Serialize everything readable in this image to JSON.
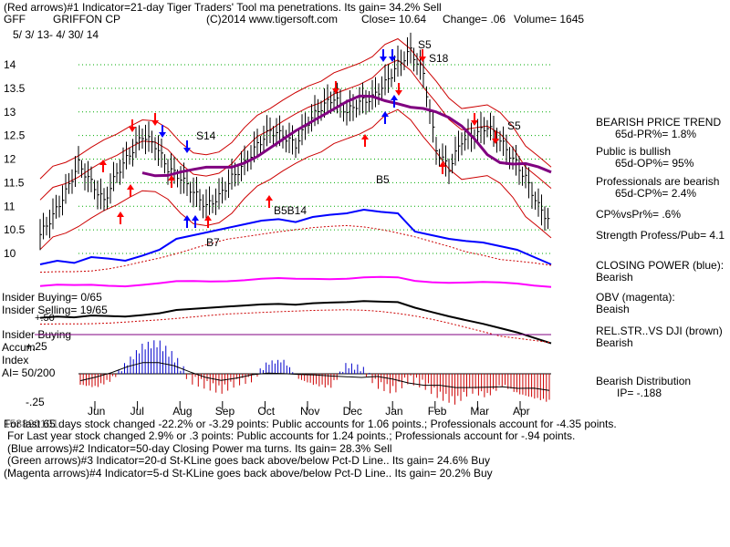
{
  "header": {
    "line1": "(Red arrows)#1 Indicator=21-day Tiger Traders' Tool ma penetrations.  Its gain= 34.2% Sell",
    "symbol": "GFF",
    "company": "GRIFFON CP",
    "copyright": "(C)2014 www.tigersoft.com",
    "close": "Close=  10.64",
    "change": "Change= .06",
    "volume": "Volume= 1645",
    "date_range": "5/ 3/ 13-  4/ 30/ 14"
  },
  "side_panel": [
    {
      "text": "BEARISH PRICE TREND"
    },
    {
      "text": "65d-PR%= 1.8%"
    },
    {
      "text": "Public is bullish"
    },
    {
      "text": "65d-OP%= 95%"
    },
    {
      "text": "Professionals are bearish"
    },
    {
      "text": "65d-CP%= 2.4%"
    },
    {
      "text": "CP%vsPr%=  .6%"
    },
    {
      "text": "Strength Profess/Pub= 4.1"
    },
    {
      "text": "CLOSING POWER (blue):"
    },
    {
      "text": "Bearish"
    },
    {
      "text": "OBV (magenta):"
    },
    {
      "text": "Beaish"
    },
    {
      "text": "REL.STR..VS DJI (brown)"
    },
    {
      "text": "Bearish"
    },
    {
      "text": "Bearish Distribution"
    },
    {
      "text": "IP= -.188"
    }
  ],
  "left_labels": {
    "insider_buying_ratio": "Insider Buying= 0/65",
    "insider_selling_ratio": "Insider Selling= 19/65",
    "plus50": "+.50",
    "insider_buying": "Insider Buying",
    "accum": "Accum",
    "plus25": "+.25",
    "index": "Index",
    "ai": "AI= 50/200",
    "minus25": "-.25"
  },
  "footer": [
    "For last 65 days stock changed -22.2% or -3.29 points:  Public accounts for  1.06 points.;  Professionals account for -4.35 points.",
    "For Last year stock changed  2.9% or  .3 points:  Public accounts for  1.24 points.;  Professionals account for -.94 points.",
    "(Blue arrows)#2 Indicator=50-day Closing Power ma turns. Its gain= 28.3% Sell",
    "(Green arrows)#3 Indicator=20-d St-KLine goes back above/below Pct-D Line..  Its gain= 24.6% Buy",
    "(Magenta arrows)#4 Indicator=5-d St-KLine goes back above/below Pct-D Line..  Its gain= 20.2% Buy"
  ],
  "footer_overlap": "153890101",
  "annotations": [
    {
      "text": "S5",
      "x_month": "Jan",
      "price": 14.4
    },
    {
      "text": "S18",
      "x_month": "Jan",
      "price": 14.1
    },
    {
      "text": "S14",
      "x_month": "Aug",
      "price": 12.4
    },
    {
      "text": "B5",
      "x_month": "Jan",
      "price": 11.5
    },
    {
      "text": "B5B14",
      "x_month": "Sep",
      "price": 10.9
    },
    {
      "text": "S5",
      "x_month": "Mar",
      "price": 12.7
    },
    {
      "text": "B7",
      "x_month": "Aug",
      "price": 10.05
    }
  ],
  "colors": {
    "price": "#000000",
    "bands": "#cc0000",
    "ma": "#800080",
    "closing_power": "#0000ff",
    "obv": "#ff00ff",
    "rel_strength": "#000000",
    "grid": "#00aa00",
    "accum_pos": "#0000cc",
    "accum_neg": "#cc0000",
    "arrow_red": "#ff0000",
    "arrow_blue": "#0000ff"
  },
  "chart_data": {
    "type": "line",
    "months": [
      "Jun",
      "Jul",
      "Aug",
      "Sep",
      "Oct",
      "Nov",
      "Dec",
      "Jan",
      "Feb",
      "Mar",
      "Apr"
    ],
    "y_ticks": [
      14,
      13.5,
      13,
      12.5,
      12,
      11.5,
      11,
      10.5,
      10
    ],
    "ylim": [
      9.8,
      14.4
    ],
    "price_close": [
      10.4,
      10.8,
      11.3,
      11.9,
      11.5,
      11.1,
      11.7,
      12.1,
      12.5,
      12.3,
      11.8,
      11.6,
      11.3,
      11.0,
      11.2,
      11.6,
      11.9,
      12.3,
      12.6,
      12.5,
      12.3,
      12.8,
      13.1,
      13.3,
      13.0,
      13.2,
      13.3,
      13.6,
      14.0,
      14.3,
      13.8,
      12.2,
      11.8,
      12.4,
      12.5,
      12.7,
      12.4,
      12.0,
      11.6,
      11.0,
      10.64
    ],
    "closing_power_shape": [
      0.1,
      0.15,
      0.12,
      0.2,
      0.18,
      0.15,
      0.22,
      0.3,
      0.45,
      0.5,
      0.55,
      0.6,
      0.65,
      0.7,
      0.72,
      0.68,
      0.75,
      0.78,
      0.8,
      0.85,
      0.82,
      0.8,
      0.55,
      0.5,
      0.45,
      0.42,
      0.4,
      0.35,
      0.3,
      0.2,
      0.1
    ],
    "accum_index": [
      -0.1,
      -0.12,
      -0.05,
      0.1,
      0.25,
      0.28,
      0.15,
      -0.05,
      -0.1,
      -0.15,
      -0.08,
      -0.05,
      0.1,
      0.12,
      -0.05,
      -0.1,
      -0.12,
      0.08,
      0.05,
      -0.1,
      -0.15,
      -0.05,
      -0.1,
      -0.2,
      -0.25,
      -0.15,
      -0.2,
      -0.1,
      -0.18,
      -0.22,
      -0.25
    ]
  }
}
